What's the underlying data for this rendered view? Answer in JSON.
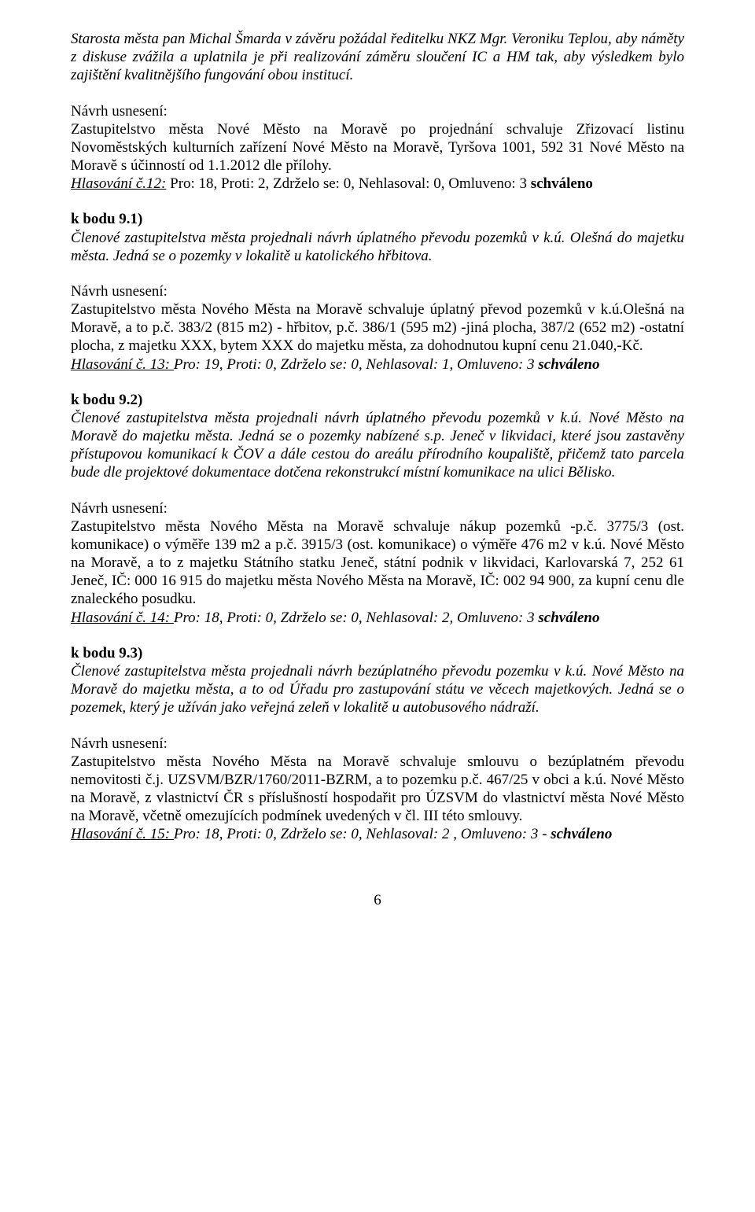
{
  "intro": "Starosta města pan Michal Šmarda v závěru požádal ředitelku NKZ Mgr. Veroniku Teplou, aby náměty z diskuse zvážila a uplatnila je při realizování záměru sloučení IC a HM tak, aby výsledkem bylo zajištění kvalitnějšího fungování obou institucí.",
  "navrh_label": "Návrh usnesení:",
  "res1": {
    "text": "Zastupitelstvo města Nové Město na Moravě po projednání schvaluje Zřizovací listinu Novoměstských kulturních zařízení Nové Město na Moravě, Tyršova 1001, 592 31 Nové Město na Moravě s účinností od 1.1.2012 dle přílohy.",
    "vote_prefix": "Hlasování č.12:",
    "vote_rest": " Pro: 18, Proti: 2, Zdrželo se: 0, Nehlasoval: 0, Omluveno: 3 ",
    "vote_result": "schváleno"
  },
  "b91": {
    "heading": "k bodu 9.1)",
    "intro": "Členové zastupitelstva města projednali návrh úplatného převodu pozemků v k.ú. Olešná do majetku města. Jedná se o pozemky v lokalitě u katolického hřbitova.",
    "res": "Zastupitelstvo města Nového Města na Moravě schvaluje úplatný převod pozemků v k.ú.Olešná na Moravě, a to p.č. 383/2 (815 m2) - hřbitov, p.č. 386/1 (595 m2) -jiná plocha, 387/2 (652 m2) -ostatní plocha, z majetku XXX, bytem XXX do majetku města, za dohodnutou kupní cenu 21.040,-Kč.",
    "vote_prefix": "Hlasování č. 13: ",
    "vote_rest": "Pro: 19,  Proti: 0, Zdrželo se: 0, Nehlasoval: 1, Omluveno: 3 ",
    "vote_result": "schváleno"
  },
  "b92": {
    "heading": "k bodu 9.2)",
    "intro": "Členové zastupitelstva města projednali návrh úplatného převodu pozemků v k.ú. Nové Město na Moravě do majetku města. Jedná se o pozemky nabízené s.p. Jeneč v likvidaci, které jsou zastavěny přístupovou komunikací k ČOV a dále cestou do areálu přírodního koupaliště, přičemž tato parcela bude dle projektové dokumentace dotčena rekonstrukcí místní komunikace na ulici Bělisko.",
    "res": "Zastupitelstvo města Nového Města na Moravě schvaluje nákup pozemků -p.č. 3775/3 (ost. komunikace) o výměře 139 m2 a p.č. 3915/3 (ost. komunikace) o výměře 476 m2 v k.ú. Nové Město na Moravě, a to z majetku Státního statku Jeneč, státní podnik v likvidaci, Karlovarská 7, 252 61 Jeneč, IČ: 000 16 915 do majetku města Nového Města na Moravě, IČ: 002 94 900, za kupní cenu dle znaleckého posudku.",
    "vote_prefix": "Hlasování č. 14: ",
    "vote_rest": "Pro: 18,  Proti: 0, Zdrželo se: 0, Nehlasoval: 2, Omluveno: 3 ",
    "vote_result": "schváleno"
  },
  "b93": {
    "heading": "k bodu 9.3)",
    "intro": "Členové zastupitelstva města projednali návrh bezúplatného převodu pozemku v k.ú. Nové Město na Moravě do majetku města, a to od Úřadu pro zastupování státu ve věcech majetkových. Jedná se o pozemek, který je užíván jako veřejná zeleň v lokalitě u autobusového nádraží.",
    "res": "Zastupitelstvo města Nového Města na Moravě schvaluje smlouvu o bezúplatném převodu nemovitosti č.j. UZSVM/BZR/1760/2011-BZRM, a to pozemku p.č. 467/25 v obci a k.ú. Nové Město na Moravě, z vlastnictví ČR s příslušností hospodařit pro ÚZSVM do vlastnictví města Nové Město na Moravě, včetně omezujících podmínek uvedených v čl. III této smlouvy.",
    "vote_prefix": "Hlasování č. 15: ",
    "vote_rest": "Pro: 18, Proti: 0, Zdrželo se: 0, Nehlasoval: 2 , Omluveno: 3 - ",
    "vote_result": "schváleno"
  },
  "page_number": "6"
}
